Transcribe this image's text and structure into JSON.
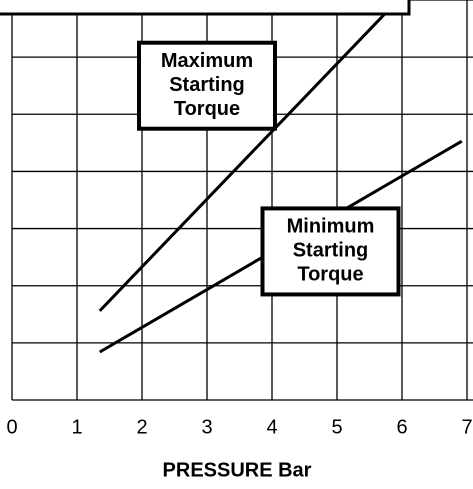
{
  "chart_data": {
    "type": "line",
    "xlabel": "PRESSURE Bar",
    "xlim": [
      0,
      7
    ],
    "xticks": [
      0,
      1,
      2,
      3,
      4,
      5,
      6,
      7
    ],
    "ylim": [
      0,
      7
    ],
    "yticks": [
      0,
      1,
      2,
      3,
      4,
      5,
      6,
      7
    ],
    "grid": true,
    "series": [
      {
        "name": "Maximum Starting Torque",
        "color": "#000000",
        "x": [
          1.35,
          5.94
        ],
        "values": [
          1.56,
          7.0
        ]
      },
      {
        "name": "Minimum Starting Torque",
        "color": "#000000",
        "x": [
          1.35,
          6.92
        ],
        "values": [
          0.84,
          4.53
        ]
      }
    ],
    "annotations": [
      {
        "lines": [
          "Maximum",
          "Starting",
          "Torque"
        ],
        "x": 3.0,
        "y": 5.5
      },
      {
        "lines": [
          "Minimum",
          "Starting",
          "Torque"
        ],
        "x": 4.9,
        "y": 2.6
      }
    ]
  }
}
